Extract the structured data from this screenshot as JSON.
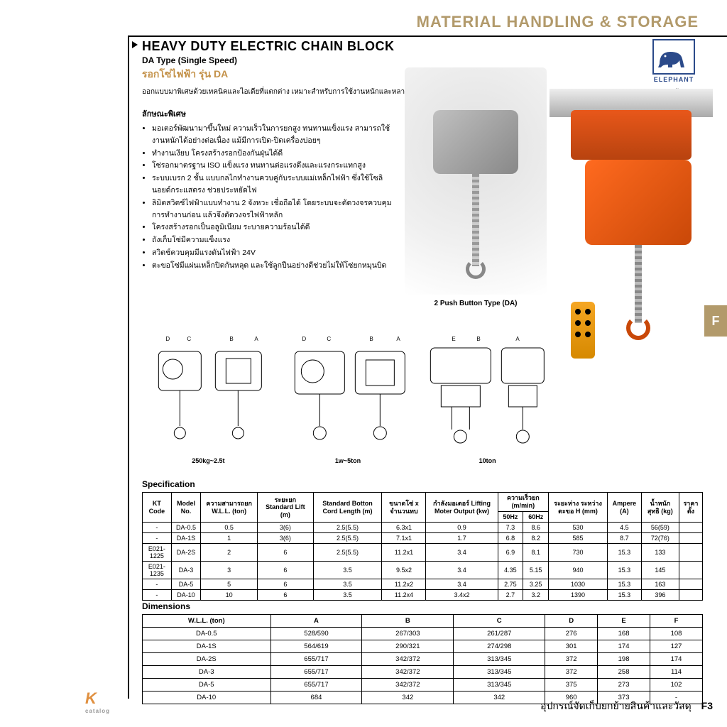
{
  "header": {
    "category": "MATERIAL HANDLING & STORAGE"
  },
  "product": {
    "title_en": "HEAVY DUTY ELECTRIC CHAIN BLOCK",
    "subtitle_en": "DA Type (Single Speed)",
    "title_th": "รอกโซ่ไฟฟ้า รุ่น DA",
    "description": "ออกแบบมาพิเศษด้วยเทคนิคและไอเดียที่แตกต่าง เหมาะสำหรับการใช้งานหนักและหลากหลาย",
    "features_heading": "ลักษณะพิเศษ",
    "features": [
      "มอเตอร์พัฒนามาขึ้นใหม่ ความเร็วในการยกสูง ทนทานแข็งแรง สามารถใช้งานหนักได้อย่างต่อเนื่อง แม้มีการเปิด-ปิดเครื่องบ่อยๆ",
      "ทำงานเงียบ โครงสร้างรอกป้องกันฝุ่นได้ดี",
      "โซ่รอกมาตรฐาน ISO แข็งแรง ทนทานต่อแรงดึงและแรงกระแทกสูง",
      "ระบบเบรก 2 ชั้น แบบกลไกทำงานควบคู่กับระบบแม่เหล็กไฟฟ้า ซึ่งใช้โซลินอยด์กระแสตรง ช่วยประหยัดไฟ",
      "ลิมิตสวิตช์ไฟฟ้าแบบทำงาน 2 จังหวะ เชื่อถือได้ โดยระบบจะตัดวงจรควบคุมการทำงานก่อน แล้วจึงตัดวงจรไฟฟ้าหลัก",
      "โครงสร้างรอกเป็นอลูมิเนียม ระบายความร้อนได้ดี",
      "ถังเก็บโซ่มีความแข็งแรง",
      "สวิตช์ควบคุมมีแรงดันไฟฟ้า 24V",
      "ตะขอโซ่มีแผ่นเหล็กปิดกันหลุด และใช้ลูกปืนอย่างดีช่วยไม่ให้โซ่ยกหมุนบิด"
    ],
    "photo1_caption": "2 Push Button Type (DA)"
  },
  "brand": {
    "name": "ELEPHANT",
    "caption": "ตราช้าง",
    "colors": {
      "frame": "#2b4a8a",
      "elephant": "#2b4a8a"
    }
  },
  "colors": {
    "accent_brown": "#b29a6b",
    "accent_orange": "#c4924a",
    "hoist_orange": "#e8571a",
    "hoist_orange_dark": "#c94808",
    "pendant": "#f5a623"
  },
  "side_tab": "F",
  "diagrams": [
    {
      "caption": "250kg~2.5t"
    },
    {
      "caption": "1w~5ton"
    },
    {
      "caption": "10ton"
    }
  ],
  "spec_table": {
    "heading": "Specification",
    "columns_row1": [
      "KT Code",
      "Model No.",
      "ความสามารถยก W.L.L. (ton)",
      "ระยะยก Standard Lift (m)",
      "Standard Botton Cord Length (m)",
      "ขนาดโซ่ x จำนวนทบ",
      "กำลังมอเตอร์ Lifting Moter Output (kw)",
      "ความเร็วยก (m/min)",
      "ระยะห่าง ระหว่างตะขอ H (mm)",
      "Ampere (A)",
      "น้ำหนัก สุทธิ (kg)",
      "ราคาตั้ง"
    ],
    "speed_sub": [
      "50Hz",
      "60Hz"
    ],
    "rows": [
      [
        "-",
        "DA-0.5",
        "0.5",
        "3(6)",
        "2.5(5.5)",
        "6.3x1",
        "0.9",
        "7.3",
        "8.6",
        "530",
        "4.5",
        "56(59)",
        ""
      ],
      [
        "-",
        "DA-1S",
        "1",
        "3(6)",
        "2.5(5.5)",
        "7.1x1",
        "1.7",
        "6.8",
        "8.2",
        "585",
        "8.7",
        "72(76)",
        ""
      ],
      [
        "E021-1225",
        "DA-2S",
        "2",
        "6",
        "2.5(5.5)",
        "11.2x1",
        "3.4",
        "6.9",
        "8.1",
        "730",
        "15.3",
        "133",
        ""
      ],
      [
        "E021-1235",
        "DA-3",
        "3",
        "6",
        "3.5",
        "9.5x2",
        "3.4",
        "4.35",
        "5.15",
        "940",
        "15.3",
        "145",
        ""
      ],
      [
        "-",
        "DA-5",
        "5",
        "6",
        "3.5",
        "11.2x2",
        "3.4",
        "2.75",
        "3.25",
        "1030",
        "15.3",
        "163",
        ""
      ],
      [
        "-",
        "DA-10",
        "10",
        "6",
        "3.5",
        "11.2x4",
        "3.4x2",
        "2.7",
        "3.2",
        "1390",
        "15.3",
        "396",
        ""
      ]
    ]
  },
  "dim_table": {
    "heading": "Dimensions",
    "columns": [
      "W.L.L. (ton)",
      "A",
      "B",
      "C",
      "D",
      "E",
      "F"
    ],
    "rows": [
      [
        "DA-0.5",
        "528/590",
        "267/303",
        "261/287",
        "276",
        "168",
        "108"
      ],
      [
        "DA-1S",
        "564/619",
        "290/321",
        "274/298",
        "301",
        "174",
        "127"
      ],
      [
        "DA-2S",
        "655/717",
        "342/372",
        "313/345",
        "372",
        "198",
        "174"
      ],
      [
        "DA-3",
        "655/717",
        "342/372",
        "313/345",
        "372",
        "258",
        "114"
      ],
      [
        "DA-5",
        "655/717",
        "342/372",
        "313/345",
        "375",
        "273",
        "102"
      ],
      [
        "DA-10",
        "684",
        "342",
        "342",
        "960",
        "373",
        "-"
      ]
    ]
  },
  "footer": {
    "logo_main": "K",
    "logo_sub": "catalog",
    "text_th": "อุปกรณ์จัดเก็บยกย้ายสินค้าและวัสดุ",
    "page": "F3"
  }
}
